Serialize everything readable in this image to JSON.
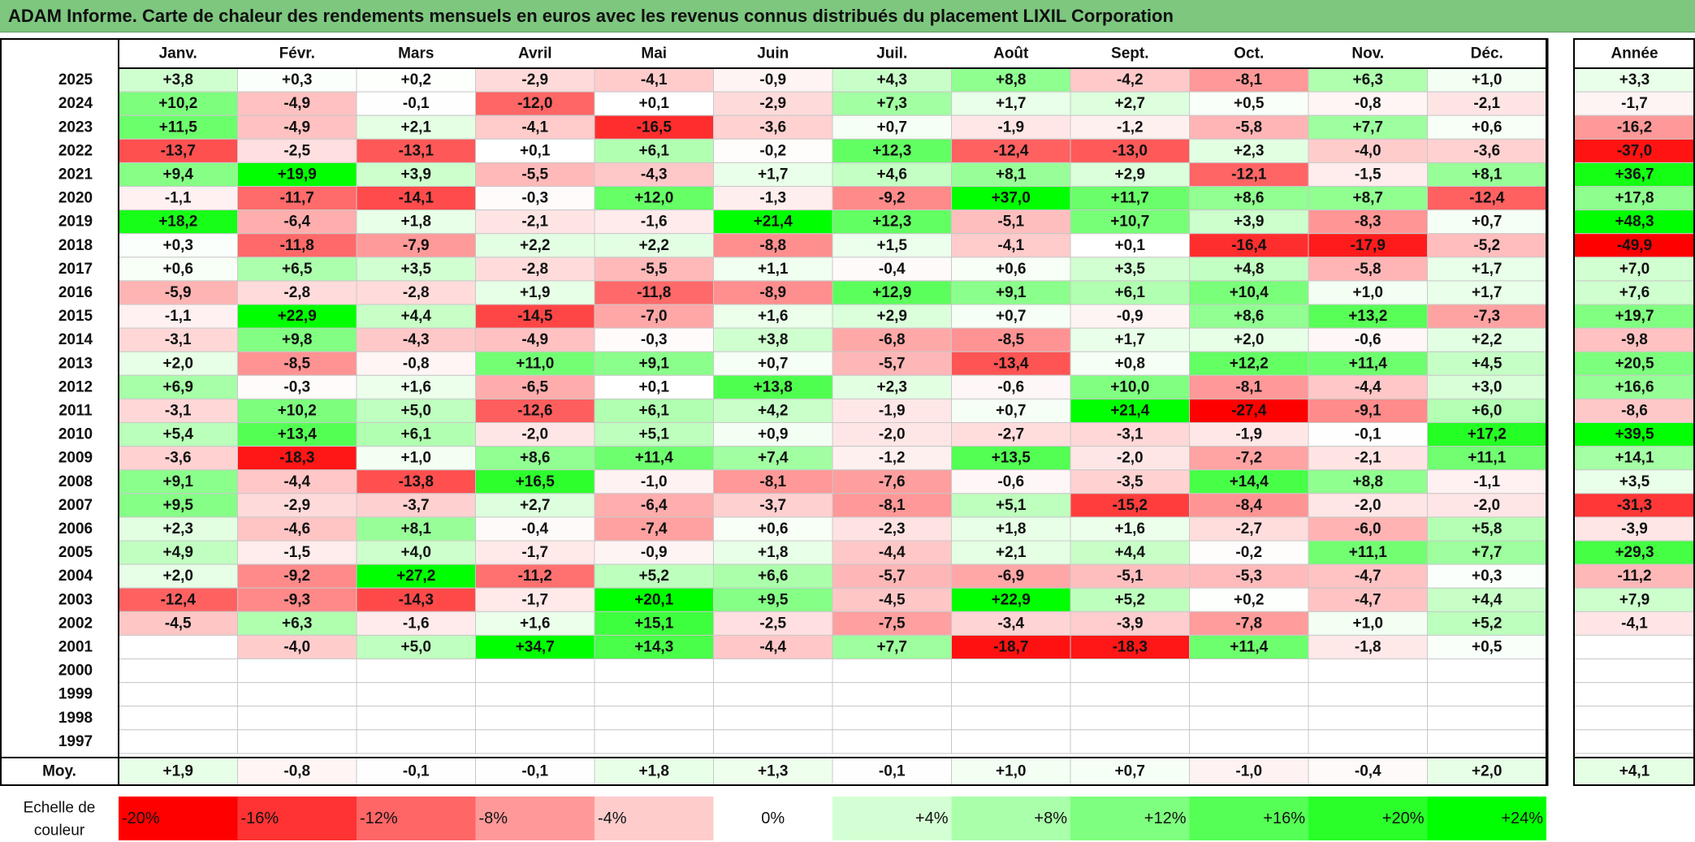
{
  "title": "ADAM Informe. Carte de chaleur des rendements mensuels en euros avec les revenus connus distribués du placement LIXIL Corporation",
  "chart_data": {
    "type": "heatmap",
    "title": "ADAM Informe. Carte de chaleur des rendements mensuels en euros avec les revenus connus distribués du placement LIXIL Corporation",
    "columns": [
      "Janv.",
      "Févr.",
      "Mars",
      "Avril",
      "Mai",
      "Juin",
      "Juil.",
      "Août",
      "Sept.",
      "Oct.",
      "Nov.",
      "Déc."
    ],
    "year_column_label": "Année",
    "rows": [
      {
        "year": "2025",
        "values": [
          "+3,8",
          "+0,3",
          "+0,2",
          "-2,9",
          "-4,1",
          "-0,9",
          "+4,3",
          "+8,8",
          "-4,2",
          "-8,1",
          "+6,3",
          "+1,0"
        ],
        "annual": "+3,3"
      },
      {
        "year": "2024",
        "values": [
          "+10,2",
          "-4,9",
          "-0,1",
          "-12,0",
          "+0,1",
          "-2,9",
          "+7,3",
          "+1,7",
          "+2,7",
          "+0,5",
          "-0,8",
          "-2,1"
        ],
        "annual": "-1,7"
      },
      {
        "year": "2023",
        "values": [
          "+11,5",
          "-4,9",
          "+2,1",
          "-4,1",
          "-16,5",
          "-3,6",
          "+0,7",
          "-1,9",
          "-1,2",
          "-5,8",
          "+7,7",
          "+0,6"
        ],
        "annual": "-16,2"
      },
      {
        "year": "2022",
        "values": [
          "-13,7",
          "-2,5",
          "-13,1",
          "+0,1",
          "+6,1",
          "-0,2",
          "+12,3",
          "-12,4",
          "-13,0",
          "+2,3",
          "-4,0",
          "-3,6"
        ],
        "annual": "-37,0"
      },
      {
        "year": "2021",
        "values": [
          "+9,4",
          "+19,9",
          "+3,9",
          "-5,5",
          "-4,3",
          "+1,7",
          "+4,6",
          "+8,1",
          "+2,9",
          "-12,1",
          "-1,5",
          "+8,1"
        ],
        "annual": "+36,7"
      },
      {
        "year": "2020",
        "values": [
          "-1,1",
          "-11,7",
          "-14,1",
          "-0,3",
          "+12,0",
          "-1,3",
          "-9,2",
          "+37,0",
          "+11,7",
          "+8,6",
          "+8,7",
          "-12,4"
        ],
        "annual": "+17,8"
      },
      {
        "year": "2019",
        "values": [
          "+18,2",
          "-6,4",
          "+1,8",
          "-2,1",
          "-1,6",
          "+21,4",
          "+12,3",
          "-5,1",
          "+10,7",
          "+3,9",
          "-8,3",
          "+0,7"
        ],
        "annual": "+48,3"
      },
      {
        "year": "2018",
        "values": [
          "+0,3",
          "-11,8",
          "-7,9",
          "+2,2",
          "+2,2",
          "-8,8",
          "+1,5",
          "-4,1",
          "+0,1",
          "-16,4",
          "-17,9",
          "-5,2"
        ],
        "annual": "-49,9"
      },
      {
        "year": "2017",
        "values": [
          "+0,6",
          "+6,5",
          "+3,5",
          "-2,8",
          "-5,5",
          "+1,1",
          "-0,4",
          "+0,6",
          "+3,5",
          "+4,8",
          "-5,8",
          "+1,7"
        ],
        "annual": "+7,0"
      },
      {
        "year": "2016",
        "values": [
          "-5,9",
          "-2,8",
          "-2,8",
          "+1,9",
          "-11,8",
          "-8,9",
          "+12,9",
          "+9,1",
          "+6,1",
          "+10,4",
          "+1,0",
          "+1,7"
        ],
        "annual": "+7,6"
      },
      {
        "year": "2015",
        "values": [
          "-1,1",
          "+22,9",
          "+4,4",
          "-14,5",
          "-7,0",
          "+1,6",
          "+2,9",
          "+0,7",
          "-0,9",
          "+8,6",
          "+13,2",
          "-7,3"
        ],
        "annual": "+19,7"
      },
      {
        "year": "2014",
        "values": [
          "-3,1",
          "+9,8",
          "-4,3",
          "-4,9",
          "-0,3",
          "+3,8",
          "-6,8",
          "-8,5",
          "+1,7",
          "+2,0",
          "-0,6",
          "+2,2"
        ],
        "annual": "-9,8"
      },
      {
        "year": "2013",
        "values": [
          "+2,0",
          "-8,5",
          "-0,8",
          "+11,0",
          "+9,1",
          "+0,7",
          "-5,7",
          "-13,4",
          "+0,8",
          "+12,2",
          "+11,4",
          "+4,5"
        ],
        "annual": "+20,5"
      },
      {
        "year": "2012",
        "values": [
          "+6,9",
          "-0,3",
          "+1,6",
          "-6,5",
          "+0,1",
          "+13,8",
          "+2,3",
          "-0,6",
          "+10,0",
          "-8,1",
          "-4,4",
          "+3,0"
        ],
        "annual": "+16,6"
      },
      {
        "year": "2011",
        "values": [
          "-3,1",
          "+10,2",
          "+5,0",
          "-12,6",
          "+6,1",
          "+4,2",
          "-1,9",
          "+0,7",
          "+21,4",
          "-27,4",
          "-9,1",
          "+6,0"
        ],
        "annual": "-8,6"
      },
      {
        "year": "2010",
        "values": [
          "+5,4",
          "+13,4",
          "+6,1",
          "-2,0",
          "+5,1",
          "+0,9",
          "-2,0",
          "-2,7",
          "-3,1",
          "-1,9",
          "-0,1",
          "+17,2"
        ],
        "annual": "+39,5"
      },
      {
        "year": "2009",
        "values": [
          "-3,6",
          "-18,3",
          "+1,0",
          "+8,6",
          "+11,4",
          "+7,4",
          "-1,2",
          "+13,5",
          "-2,0",
          "-7,2",
          "-2,1",
          "+11,1"
        ],
        "annual": "+14,1"
      },
      {
        "year": "2008",
        "values": [
          "+9,1",
          "-4,4",
          "-13,8",
          "+16,5",
          "-1,0",
          "-8,1",
          "-7,6",
          "-0,6",
          "-3,5",
          "+14,4",
          "+8,8",
          "-1,1"
        ],
        "annual": "+3,5"
      },
      {
        "year": "2007",
        "values": [
          "+9,5",
          "-2,9",
          "-3,7",
          "+2,7",
          "-6,4",
          "-3,7",
          "-8,1",
          "+5,1",
          "-15,2",
          "-8,4",
          "-2,0",
          "-2,0"
        ],
        "annual": "-31,3"
      },
      {
        "year": "2006",
        "values": [
          "+2,3",
          "-4,6",
          "+8,1",
          "-0,4",
          "-7,4",
          "+0,6",
          "-2,3",
          "+1,8",
          "+1,6",
          "-2,7",
          "-6,0",
          "+5,8"
        ],
        "annual": "-3,9"
      },
      {
        "year": "2005",
        "values": [
          "+4,9",
          "-1,5",
          "+4,0",
          "-1,7",
          "-0,9",
          "+1,8",
          "-4,4",
          "+2,1",
          "+4,4",
          "-0,2",
          "+11,1",
          "+7,7"
        ],
        "annual": "+29,3"
      },
      {
        "year": "2004",
        "values": [
          "+2,0",
          "-9,2",
          "+27,2",
          "-11,2",
          "+5,2",
          "+6,6",
          "-5,7",
          "-6,9",
          "-5,1",
          "-5,3",
          "-4,7",
          "+0,3"
        ],
        "annual": "-11,2"
      },
      {
        "year": "2003",
        "values": [
          "-12,4",
          "-9,3",
          "-14,3",
          "-1,7",
          "+20,1",
          "+9,5",
          "-4,5",
          "+22,9",
          "+5,2",
          "+0,2",
          "-4,7",
          "+4,4"
        ],
        "annual": "+7,9"
      },
      {
        "year": "2002",
        "values": [
          "-4,5",
          "+6,3",
          "-1,6",
          "+1,6",
          "+15,1",
          "-2,5",
          "-7,5",
          "-3,4",
          "-3,9",
          "-7,8",
          "+1,0",
          "+5,2"
        ],
        "annual": "-4,1"
      },
      {
        "year": "2001",
        "values": [
          "",
          "-4,0",
          "+5,0",
          "+34,7",
          "+14,3",
          "-4,4",
          "+7,7",
          "-18,7",
          "-18,3",
          "+11,4",
          "-1,8",
          "+0,5"
        ],
        "annual": ""
      },
      {
        "year": "2000",
        "values": [
          "",
          "",
          "",
          "",
          "",
          "",
          "",
          "",
          "",
          "",
          "",
          ""
        ],
        "annual": ""
      },
      {
        "year": "1999",
        "values": [
          "",
          "",
          "",
          "",
          "",
          "",
          "",
          "",
          "",
          "",
          "",
          ""
        ],
        "annual": ""
      },
      {
        "year": "1998",
        "values": [
          "",
          "",
          "",
          "",
          "",
          "",
          "",
          "",
          "",
          "",
          "",
          ""
        ],
        "annual": ""
      },
      {
        "year": "1997",
        "values": [
          "",
          "",
          "",
          "",
          "",
          "",
          "",
          "",
          "",
          "",
          "",
          ""
        ],
        "annual": ""
      }
    ],
    "average": {
      "label": "Moy.",
      "values": [
        "+1,9",
        "-0,8",
        "-0,1",
        "-0,1",
        "+1,8",
        "+1,3",
        "-0,1",
        "+1,0",
        "+0,7",
        "-1,0",
        "-0,4",
        "+2,0"
      ],
      "annual": "+4,1"
    },
    "color_scale": {
      "label": "Echelle de couleur",
      "steps": [
        {
          "label": "-20%",
          "value": -20,
          "color": "#ff0000"
        },
        {
          "label": "-16%",
          "value": -16,
          "color": "#ff3333"
        },
        {
          "label": "-12%",
          "value": -12,
          "color": "#ff6666"
        },
        {
          "label": "-8%",
          "value": -8,
          "color": "#ff9999"
        },
        {
          "label": "-4%",
          "value": -4,
          "color": "#ffcccc"
        },
        {
          "label": "0%",
          "value": 0,
          "color": "#ffffff"
        },
        {
          "label": "+4%",
          "value": 4,
          "color": "#d4ffd4"
        },
        {
          "label": "+8%",
          "value": 8,
          "color": "#aaffaa"
        },
        {
          "label": "+12%",
          "value": 12,
          "color": "#7fff7f"
        },
        {
          "label": "+16%",
          "value": 16,
          "color": "#55ff55"
        },
        {
          "label": "+20%",
          "value": 20,
          "color": "#2aff2a"
        },
        {
          "label": "+24%",
          "value": 24,
          "color": "#00ff00"
        }
      ]
    }
  }
}
